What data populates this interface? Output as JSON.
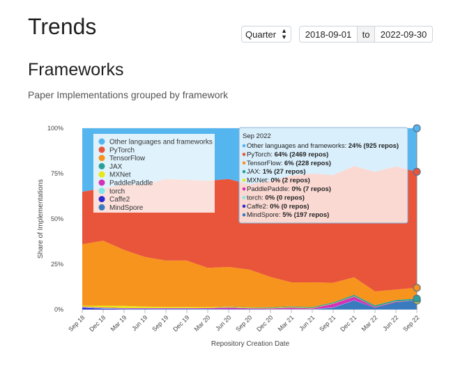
{
  "header": {
    "title": "Trends"
  },
  "controls": {
    "period": "Quarter",
    "date_start": "2018-09-01",
    "date_separator": "to",
    "date_end": "2022-09-30"
  },
  "section": {
    "title": "Frameworks",
    "subtitle": "Paper Implementations grouped by framework"
  },
  "chart_data": {
    "type": "area",
    "stacking": "percent",
    "xlabel": "Repository Creation Date",
    "ylabel": "Share of Implementations",
    "ylim": [
      0,
      100
    ],
    "y_ticks": [
      "0%",
      "25%",
      "50%",
      "75%",
      "100%"
    ],
    "categories": [
      "Sep 18",
      "Dec 18",
      "Mar 19",
      "Jun 19",
      "Sep 19",
      "Dec 19",
      "Mar 20",
      "Jun 20",
      "Sep 20",
      "Dec 20",
      "Mar 21",
      "Jun 21",
      "Sep 21",
      "Dec 21",
      "Mar 22",
      "Jun 22",
      "Sep 22"
    ],
    "legend_position": "top-left",
    "series": [
      {
        "name": "MindSpore",
        "color": "#3a7bbf",
        "values": [
          0,
          0,
          0,
          0,
          0,
          0,
          0,
          0,
          0,
          0,
          0,
          0,
          1,
          5,
          1,
          4,
          5
        ]
      },
      {
        "name": "Caffe2",
        "color": "#2b2bd0",
        "values": [
          1,
          0.5,
          0.3,
          0.3,
          0.3,
          0.3,
          0.2,
          0.2,
          0.2,
          0.1,
          0.1,
          0.1,
          0.1,
          0.1,
          0,
          0,
          0
        ]
      },
      {
        "name": "torch",
        "color": "#7ee8e8",
        "values": [
          0.3,
          0.3,
          0.2,
          0.2,
          0.2,
          0.2,
          0.2,
          0.1,
          0.1,
          0.1,
          0.1,
          0.1,
          0.1,
          0.1,
          0,
          0,
          0
        ]
      },
      {
        "name": "PaddlePaddle",
        "color": "#d62fb8",
        "values": [
          0.3,
          0.3,
          0.3,
          0.3,
          0.3,
          0.3,
          0.4,
          0.8,
          0.4,
          0.4,
          0.8,
          0.4,
          2,
          2,
          0.4,
          0.4,
          0
        ]
      },
      {
        "name": "MXNet",
        "color": "#e8e817",
        "values": [
          0.5,
          1,
          1.2,
          0.8,
          0.6,
          0.6,
          0.5,
          0.4,
          0.3,
          0.3,
          0.3,
          0.2,
          0.2,
          0.2,
          0.1,
          0.1,
          0
        ]
      },
      {
        "name": "JAX",
        "color": "#2aa198",
        "values": [
          0,
          0,
          0,
          0,
          0,
          0,
          0,
          0.2,
          0.2,
          0.3,
          0.4,
          0.5,
          0.6,
          0.8,
          0.8,
          0.8,
          1
        ]
      },
      {
        "name": "TensorFlow",
        "color": "#f7941d",
        "values": [
          33.9,
          35.9,
          30.8,
          27.4,
          25.6,
          25.6,
          21.7,
          21.8,
          20.8,
          16.8,
          13.3,
          13.7,
          10.9,
          9.8,
          7.7,
          5.7,
          6
        ]
      },
      {
        "name": "PyTorch",
        "color": "#e9553a",
        "values": [
          29,
          29,
          36,
          40,
          45,
          44.5,
          48,
          48.5,
          47,
          53,
          59,
          60,
          60,
          62,
          66,
          68,
          64
        ]
      },
      {
        "name": "Other languages and frameworks",
        "color": "#55b5ef",
        "values": [
          35,
          33,
          31,
          31,
          28,
          28.5,
          29,
          28,
          31,
          29,
          26,
          25,
          26,
          21,
          24,
          21,
          24
        ]
      }
    ],
    "legend_order": [
      "Other languages and frameworks",
      "PyTorch",
      "TensorFlow",
      "JAX",
      "MXNet",
      "PaddlePaddle",
      "torch",
      "Caffe2",
      "MindSpore"
    ]
  },
  "tooltip": {
    "title": "Sep 2022",
    "rows": [
      {
        "label": "Other languages and frameworks: ",
        "value": "24% (925 repos)",
        "color": "#55b5ef"
      },
      {
        "label": "PyTorch: ",
        "value": "64% (2469 repos)",
        "color": "#e9553a"
      },
      {
        "label": "TensorFlow: ",
        "value": "6% (228 repos)",
        "color": "#f7941d"
      },
      {
        "label": "JAX: ",
        "value": "1% (27 repos)",
        "color": "#2aa198"
      },
      {
        "label": "MXNet: ",
        "value": "0% (2 repos)",
        "color": "#e8e817"
      },
      {
        "label": "PaddlePaddle: ",
        "value": "0% (7 repos)",
        "color": "#d62fb8"
      },
      {
        "label": "torch: ",
        "value": "0% (0 repos)",
        "color": "#7ee8e8"
      },
      {
        "label": "Caffe2: ",
        "value": "0% (0 repos)",
        "color": "#2b2bd0"
      },
      {
        "label": "MindSpore: ",
        "value": "5% (197 repos)",
        "color": "#3a7bbf"
      }
    ]
  }
}
